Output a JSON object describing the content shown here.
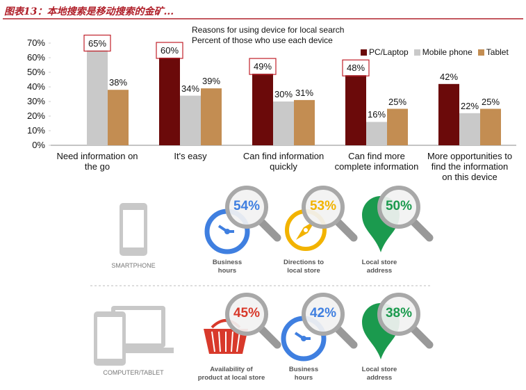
{
  "header": {
    "title": "图表13：本地搜索是移动搜索的金矿..."
  },
  "chart_data": {
    "type": "bar",
    "title": "Reasons for using device for local search",
    "subtitle": "Percent of those who use each device",
    "categories": [
      "Need information on\nthe go",
      "It's easy",
      "Can find information\nquickly",
      "Can find more\ncomplete information",
      "More opportunities to\nfind the information\non this device"
    ],
    "series": [
      {
        "name": "PC/Laptop",
        "color": "#6b0a0a",
        "values": [
          null,
          60,
          49,
          48,
          42
        ],
        "value_labels": [
          null,
          "60%",
          "49%",
          "48%",
          "42%"
        ]
      },
      {
        "name": "Mobile phone",
        "color": "#c9c9c9",
        "values": [
          65,
          34,
          30,
          16,
          22
        ],
        "value_labels": [
          "65%",
          "34%",
          "30%",
          "16%",
          "22%"
        ]
      },
      {
        "name": "Tablet",
        "color": "#c38d52",
        "values": [
          38,
          39,
          31,
          25,
          25
        ],
        "value_labels": [
          "38%",
          "39%",
          "31%",
          "25%",
          "25%"
        ]
      }
    ],
    "highlighted": [
      [
        1,
        0
      ],
      [
        0,
        1
      ],
      [
        0,
        2
      ],
      [
        0,
        3
      ]
    ],
    "ylim": [
      0,
      70
    ],
    "yticks": [
      {
        "value": 0,
        "label": "0%"
      },
      {
        "value": 10,
        "label": "10%"
      },
      {
        "value": 20,
        "label": "20%"
      },
      {
        "value": 30,
        "label": "30%"
      },
      {
        "value": 40,
        "label": "40%"
      },
      {
        "value": 50,
        "label": "50%"
      },
      {
        "value": 60,
        "label": "60%"
      },
      {
        "value": 70,
        "label": "70%"
      }
    ],
    "grid": false,
    "legend": "top-right"
  },
  "infographic": {
    "rows": [
      {
        "device": "SMARTPHONE",
        "items": [
          {
            "percent": "54%",
            "label": "Business\nhours",
            "icon": "clock",
            "color": "#3f7fe0"
          },
          {
            "percent": "53%",
            "label": "Directions to\nlocal store",
            "icon": "compass",
            "color": "#f2b300"
          },
          {
            "percent": "50%",
            "label": "Local store\naddress",
            "icon": "pin",
            "color": "#1b9a4e"
          }
        ]
      },
      {
        "device": "COMPUTER/TABLET",
        "items": [
          {
            "percent": "45%",
            "label": "Availability of\nproduct at local store",
            "icon": "basket",
            "color": "#d8392b"
          },
          {
            "percent": "42%",
            "label": "Business\nhours",
            "icon": "clock",
            "color": "#3f7fe0"
          },
          {
            "percent": "38%",
            "label": "Local store\naddress",
            "icon": "pin",
            "color": "#1b9a4e"
          }
        ]
      }
    ]
  }
}
